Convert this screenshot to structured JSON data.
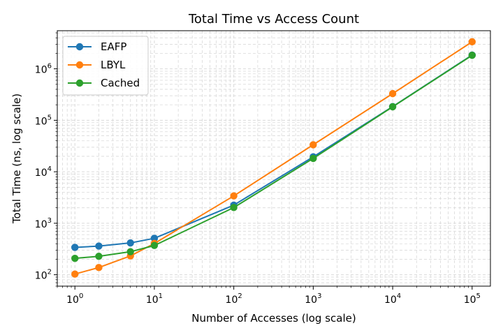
{
  "chart_data": {
    "type": "line",
    "title": "Total Time vs Access Count",
    "xlabel": "Number of Accesses (log scale)",
    "ylabel": "Total Time (ns, log scale)",
    "xscale": "log",
    "yscale": "log",
    "xlim": [
      0.6,
      170000
    ],
    "ylim": [
      60,
      5500000
    ],
    "grid": "on (major and minor, dashed)",
    "legend_position": "top-left",
    "x": [
      1,
      2,
      5,
      10,
      100,
      1000,
      10000,
      100000
    ],
    "xticks": [
      {
        "base": "10",
        "exp": "0"
      },
      {
        "base": "10",
        "exp": "1"
      },
      {
        "base": "10",
        "exp": "2"
      },
      {
        "base": "10",
        "exp": "3"
      },
      {
        "base": "10",
        "exp": "4"
      },
      {
        "base": "10",
        "exp": "5"
      }
    ],
    "yticks": [
      {
        "base": "10",
        "exp": "2"
      },
      {
        "base": "10",
        "exp": "3"
      },
      {
        "base": "10",
        "exp": "4"
      },
      {
        "base": "10",
        "exp": "5"
      },
      {
        "base": "10",
        "exp": "6"
      }
    ],
    "series": [
      {
        "name": "EAFP",
        "color": "#1f77b4",
        "values": [
          340,
          360,
          415,
          510,
          2250,
          19500,
          185000,
          1850000
        ]
      },
      {
        "name": "LBYL",
        "color": "#ff7f0e",
        "values": [
          103,
          138,
          232,
          405,
          3400,
          33500,
          330000,
          3350000
        ]
      },
      {
        "name": "Cached",
        "color": "#2ca02c",
        "values": [
          208,
          228,
          280,
          370,
          2020,
          18200,
          183000,
          1830000
        ]
      }
    ]
  }
}
